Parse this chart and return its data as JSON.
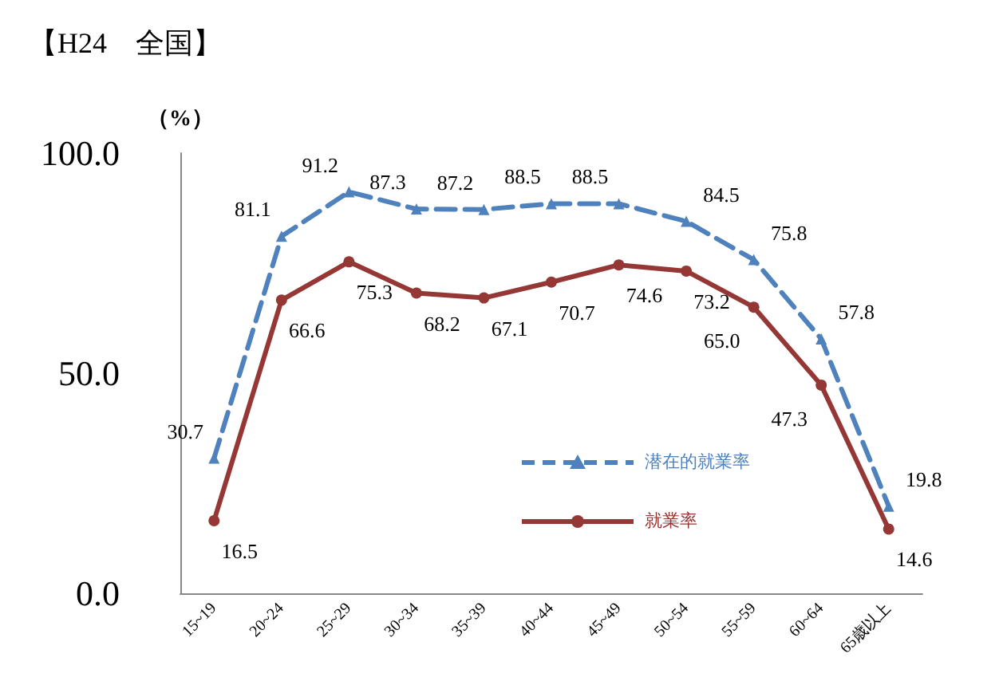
{
  "chart_data": {
    "type": "line",
    "title": "【H24　全国】",
    "ylabel": "（%）",
    "categories": [
      "15~19",
      "20~24",
      "25~29",
      "30~34",
      "35~39",
      "40~44",
      "45~49",
      "50~54",
      "55~59",
      "60~64",
      "65歳以上"
    ],
    "series": [
      {
        "name": "潜在的就業率",
        "color": "#4f81bd",
        "line_style": "dashed",
        "marker": "triangle",
        "values": [
          30.7,
          81.1,
          91.2,
          87.3,
          87.2,
          88.5,
          88.5,
          84.5,
          75.8,
          57.8,
          19.8
        ],
        "value_labels": [
          "30.7",
          "81.1",
          "91.2",
          "87.3",
          "87.2",
          "88.5",
          "88.5",
          "84.5",
          "75.8",
          "57.8",
          "19.8"
        ]
      },
      {
        "name": "就業率",
        "color": "#953735",
        "line_style": "solid",
        "marker": "circle",
        "values": [
          16.5,
          66.6,
          75.3,
          68.2,
          67.1,
          70.7,
          74.6,
          73.2,
          65.0,
          47.3,
          14.6
        ],
        "value_labels": [
          "16.5",
          "66.6",
          "75.3",
          "68.2",
          "67.1",
          "70.7",
          "74.6",
          "73.2",
          "65.0",
          "47.3",
          "14.6"
        ]
      }
    ],
    "ylim": [
      0,
      100
    ],
    "yticks": [
      {
        "value": 0,
        "label": "0.0"
      },
      {
        "value": 50,
        "label": "50.0"
      },
      {
        "value": 100,
        "label": "100.0"
      }
    ],
    "grid": false,
    "legend": "right"
  }
}
